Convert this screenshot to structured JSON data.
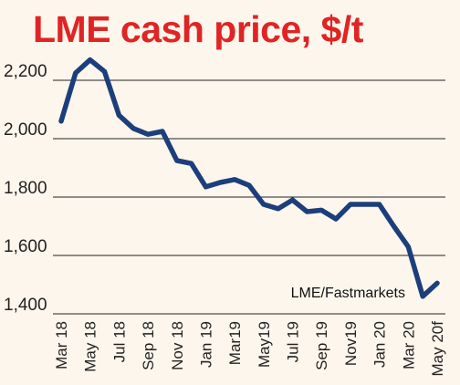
{
  "chart_data": {
    "type": "line",
    "title": "LME cash price, $/t",
    "source": "LME/Fastmarkets",
    "xlabel": "",
    "ylabel": "",
    "ylim": [
      1400,
      2300
    ],
    "yticks": [
      1400,
      1600,
      1800,
      2000,
      2200
    ],
    "ytick_labels": [
      "1,400",
      "1,600",
      "1,800",
      "2,000",
      "2,200"
    ],
    "xtick_labels": [
      "Mar 18",
      "May 18",
      "Jul 18",
      "Sep 18",
      "Nov 18",
      "Jan 19",
      "Mar19",
      "May19",
      "Jul 19",
      "Sep 19",
      "Nov19",
      "Jan 20",
      "Mar 20",
      "May 20f"
    ],
    "grid": true,
    "line_color": "#1c3f7c",
    "title_color": "#e02424",
    "background": "#fdf6ec",
    "series": [
      {
        "x": [
          "Mar 18",
          "Apr 18",
          "May 18",
          "Jun 18",
          "Jul 18",
          "Aug 18",
          "Sep 18",
          "Oct 18",
          "Nov 18",
          "Dec 18",
          "Jan 19",
          "Feb 19",
          "Mar19",
          "Apr 19",
          "May19",
          "Jun 19",
          "Jul 19",
          "Aug 19",
          "Sep 19",
          "Oct 19",
          "Nov19",
          "Dec 19",
          "Jan 20",
          "Feb 20",
          "Mar 20",
          "Apr 20",
          "May 20f"
        ],
        "values": [
          2060,
          2225,
          2270,
          2230,
          2080,
          2035,
          2015,
          2025,
          1925,
          1915,
          1835,
          1850,
          1860,
          1840,
          1775,
          1760,
          1790,
          1750,
          1755,
          1725,
          1775,
          1775,
          1775,
          1700,
          1630,
          1460,
          1505
        ]
      }
    ]
  }
}
